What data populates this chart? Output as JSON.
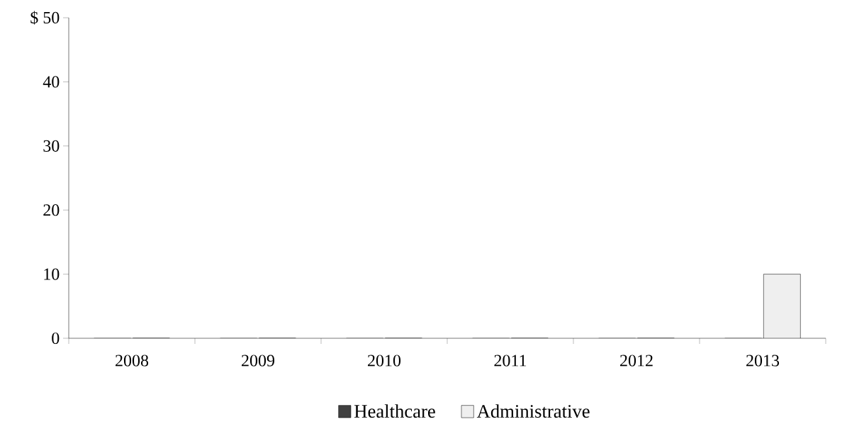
{
  "chart_data": {
    "type": "bar",
    "categories": [
      "2008",
      "2009",
      "2010",
      "2011",
      "2012",
      "2013"
    ],
    "series": [
      {
        "name": "Healthcare",
        "color": "#404040",
        "values": [
          0,
          0,
          0,
          0,
          0,
          0
        ]
      },
      {
        "name": "Administrative",
        "color": "#efefef",
        "values": [
          0,
          0,
          0,
          0,
          0,
          10
        ]
      }
    ],
    "ylim": [
      0,
      50
    ],
    "yticks": [
      0,
      10,
      20,
      30,
      40,
      {
        "value": 50,
        "label": "$ 50"
      }
    ],
    "grid": false,
    "legend": "bottom"
  }
}
